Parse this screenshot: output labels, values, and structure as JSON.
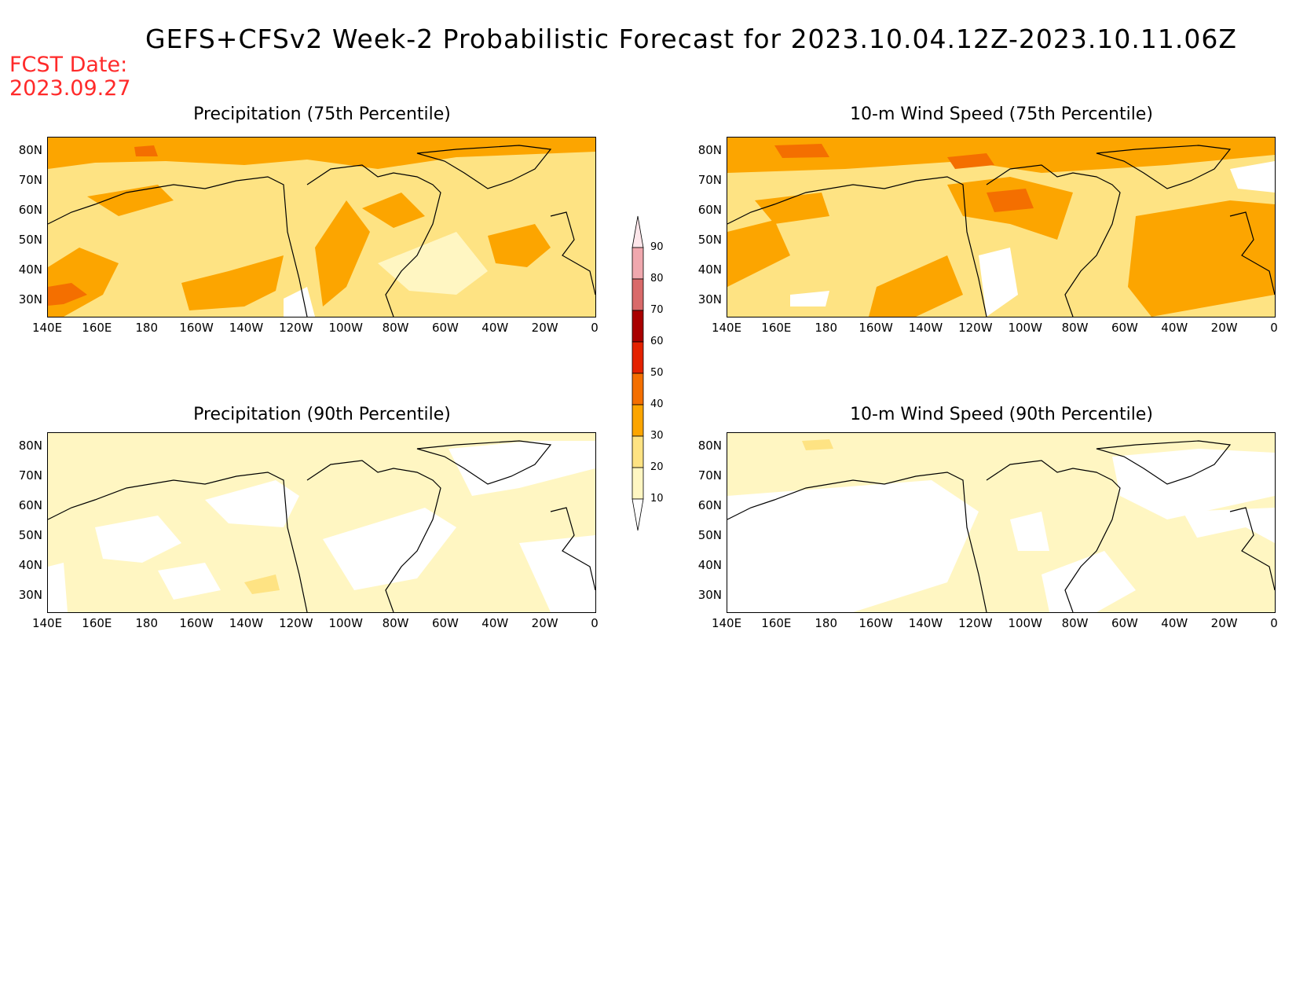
{
  "header": {
    "title": "GEFS+CFSv2 Week-2 Probabilistic Forecast for 2023.10.04.12Z-2023.10.11.06Z",
    "fcst_label": "FCST Date:",
    "fcst_date": "2023.09.27"
  },
  "panels": [
    {
      "title": "Precipitation (75th Percentile)",
      "variable": "Precipitation",
      "percentile": "75th",
      "dominant_category": "20-30"
    },
    {
      "title": "10-m Wind Speed (75th Percentile)",
      "variable": "10-m Wind Speed",
      "percentile": "75th",
      "dominant_category": "20-30"
    },
    {
      "title": "Precipitation (90th Percentile)",
      "variable": "Precipitation",
      "percentile": "90th",
      "dominant_category": "10-20"
    },
    {
      "title": "10-m Wind Speed (90th Percentile)",
      "variable": "10-m Wind Speed",
      "percentile": "90th",
      "dominant_category": "10-20"
    }
  ],
  "axes": {
    "lat_labels": [
      "80N",
      "70N",
      "60N",
      "50N",
      "40N",
      "30N"
    ],
    "lon_labels": [
      "140E",
      "160E",
      "180",
      "160W",
      "140W",
      "120W",
      "100W",
      "80W",
      "60W",
      "40W",
      "20W",
      "0"
    ]
  },
  "colorbar": {
    "levels": [
      "10",
      "20",
      "30",
      "40",
      "50",
      "60",
      "70",
      "80",
      "90"
    ],
    "colors": [
      "#ffffff",
      "#fff6c2",
      "#fee383",
      "#fca500",
      "#f46f00",
      "#e42200",
      "#a90000",
      "#d96a6a",
      "#f0a8ae",
      "#fde6ea"
    ]
  }
}
